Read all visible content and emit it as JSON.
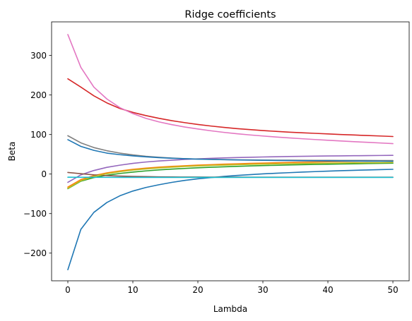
{
  "chart_data": {
    "type": "line",
    "title": "Ridge coefficients",
    "xlabel": "Lambda",
    "ylabel": "Beta",
    "xlim": [
      -2.5,
      52.5
    ],
    "ylim": [
      -270,
      385
    ],
    "xticks": [
      0,
      10,
      20,
      30,
      40,
      50
    ],
    "yticks": [
      -200,
      -100,
      0,
      100,
      200,
      300
    ],
    "xtick_labels": [
      "0",
      "10",
      "20",
      "30",
      "40",
      "50"
    ],
    "ytick_labels": [
      "−200",
      "−100",
      "0",
      "100",
      "200",
      "300"
    ],
    "grid": false,
    "legend": false,
    "x": [
      0,
      2,
      4,
      6,
      8,
      10,
      12,
      14,
      16,
      18,
      20,
      22,
      24,
      26,
      28,
      30,
      32,
      34,
      36,
      38,
      40,
      42,
      44,
      46,
      48,
      50
    ],
    "series": [
      {
        "color": "#1f77b4",
        "values": [
          -242,
          -140,
          -97,
          -72,
          -55,
          -43,
          -34,
          -27,
          -21,
          -16,
          -12,
          -9,
          -6,
          -3.5,
          -1.5,
          0.5,
          2,
          3.5,
          5,
          6.2,
          7.4,
          8.5,
          9.5,
          10.4,
          11.2,
          12
        ]
      },
      {
        "color": "#ff7f0e",
        "values": [
          -33,
          -14,
          -4,
          3,
          8,
          12,
          15,
          17.5,
          19.5,
          21,
          22.5,
          23.8,
          25,
          26,
          27,
          27.8,
          28.6,
          29.3,
          30,
          30.6,
          31.2,
          31.7,
          32.2,
          32.6,
          33,
          33.4
        ]
      },
      {
        "color": "#2ca02c",
        "values": [
          -37,
          -18,
          -9,
          -3,
          1.5,
          5,
          8,
          10.5,
          12.5,
          14.2,
          15.8,
          17.2,
          18.4,
          19.5,
          20.5,
          21.4,
          22.2,
          23,
          23.7,
          24.3,
          24.9,
          25.5,
          26,
          26.5,
          27,
          27.4
        ]
      },
      {
        "color": "#d62728",
        "values": [
          241,
          220,
          198,
          180,
          166,
          156,
          148,
          141,
          135,
          130,
          125.5,
          121.5,
          118,
          115,
          112.5,
          110,
          108,
          106,
          104.5,
          103,
          101.5,
          100,
          98.8,
          97.5,
          96.3,
          95
        ]
      },
      {
        "color": "#9467bd",
        "values": [
          -21,
          -2,
          9,
          17,
          22.5,
          27,
          30.5,
          33,
          35,
          37,
          38.5,
          39.8,
          40.8,
          41.7,
          42.5,
          43.2,
          43.8,
          44.4,
          44.9,
          45.3,
          45.7,
          46.1,
          46.4,
          46.7,
          47,
          47.3
        ]
      },
      {
        "color": "#8c564b",
        "values": [
          4,
          1,
          -2,
          -4,
          -5,
          -6,
          -6.5,
          -7,
          -7.3,
          -7.5,
          -7.6,
          -7.7,
          -7.8,
          -7.8,
          -7.9,
          -7.9,
          -7.9,
          -8,
          -8,
          -8,
          -8,
          -8,
          -8,
          -8,
          -8,
          -8
        ]
      },
      {
        "color": "#e377c2",
        "values": [
          353,
          270,
          220,
          190,
          168,
          153,
          141,
          132,
          125,
          119,
          114,
          109.5,
          105.5,
          102,
          99,
          96.3,
          93.8,
          91.5,
          89.4,
          87.4,
          85.5,
          83.7,
          82,
          80.3,
          78.7,
          77
        ]
      },
      {
        "color": "#7f7f7f",
        "values": [
          97,
          79,
          67,
          59,
          53,
          48.5,
          45,
          42.5,
          40.5,
          39,
          38,
          37.2,
          36.6,
          36.1,
          35.7,
          35.4,
          35.2,
          35,
          34.8,
          34.7,
          34.6,
          34.5,
          34.4,
          34.4,
          34.3,
          34.3
        ]
      },
      {
        "color": "#bcbd22",
        "values": [
          -36,
          -17,
          -6,
          1,
          6,
          10,
          13,
          15.5,
          17.5,
          19.2,
          20.6,
          21.8,
          22.8,
          23.7,
          24.5,
          25.2,
          25.8,
          26.3,
          26.8,
          27.2,
          27.6,
          28,
          28.3,
          28.6,
          28.9,
          29.2
        ]
      },
      {
        "color": "#17becf",
        "values": [
          -8,
          -8.2,
          -8.3,
          -8.3,
          -8.4,
          -8.4,
          -8.4,
          -8.4,
          -8.4,
          -8.4,
          -8.4,
          -8.4,
          -8.4,
          -8.4,
          -8.4,
          -8.4,
          -8.4,
          -8.4,
          -8.4,
          -8.4,
          -8.4,
          -8.4,
          -8.4,
          -8.4,
          -8.4,
          -8.4
        ]
      },
      {
        "color": "#1f77b4",
        "values": [
          87,
          70,
          60,
          53,
          49,
          46,
          43.5,
          41.5,
          40,
          38.8,
          37.8,
          37,
          36.3,
          35.7,
          35.2,
          34.8,
          34.4,
          34.1,
          33.8,
          33.5,
          33.3,
          33.1,
          32.9,
          32.7,
          32.5,
          32.3
        ]
      }
    ]
  }
}
